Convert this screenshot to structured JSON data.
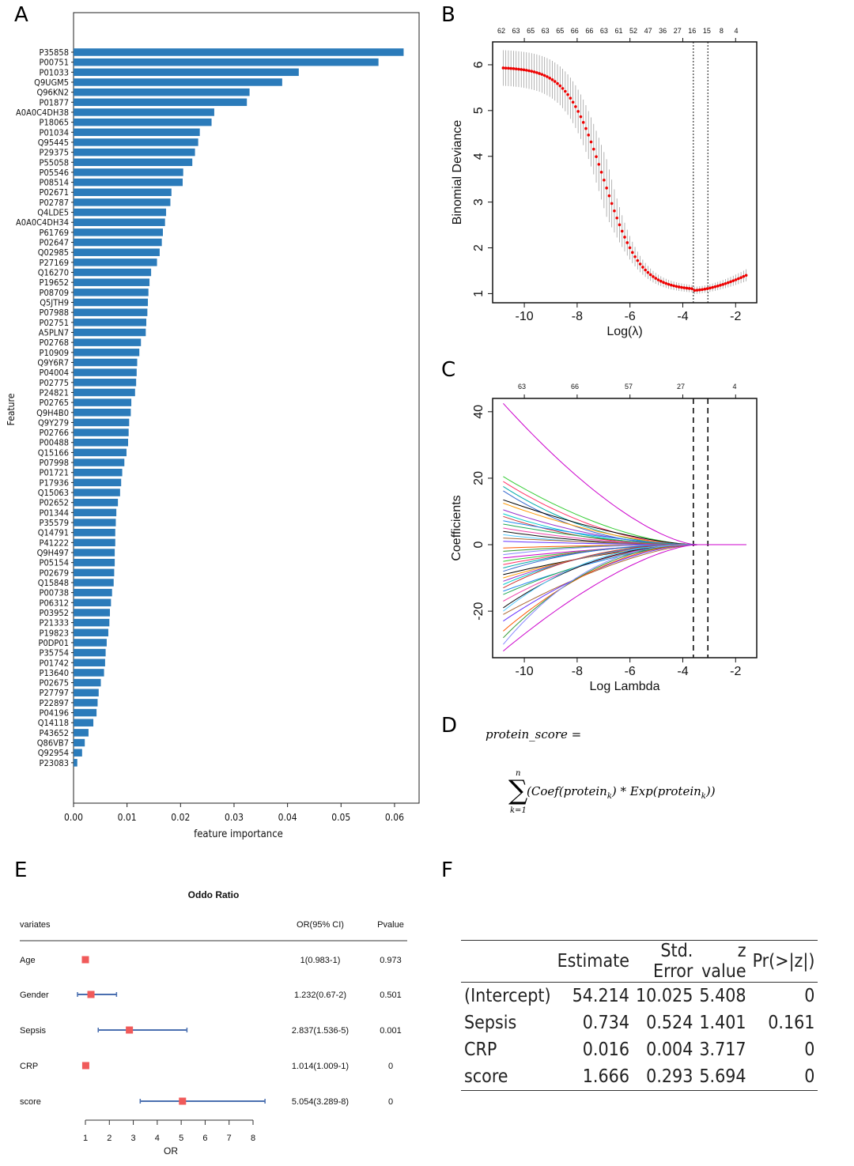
{
  "panels": {
    "a": "A",
    "b": "B",
    "c": "C",
    "d": "D",
    "e": "E",
    "f": "F"
  },
  "chart_data": [
    {
      "type": "bar",
      "orientation": "horizontal",
      "xlabel": "feature importance",
      "ylabel": "Feature",
      "xlim": [
        0,
        0.064
      ],
      "xticks": [
        "0.00",
        "0.01",
        "0.02",
        "0.03",
        "0.04",
        "0.05",
        "0.06"
      ],
      "color": "#2b7bba",
      "categories": [
        "P35858",
        "P00751",
        "P01033",
        "Q9UGM5",
        "Q96KN2",
        "P01877",
        "A0A0C4DH38",
        "P18065",
        "P01034",
        "Q95445",
        "P29375",
        "P55058",
        "P05546",
        "P08514",
        "P02671",
        "P02787",
        "Q4LDE5",
        "A0A0C4DH34",
        "P61769",
        "P02647",
        "Q02985",
        "P27169",
        "Q16270",
        "P19652",
        "P08709",
        "Q5JTH9",
        "P07988",
        "P02751",
        "A5PLN7",
        "P02768",
        "P10909",
        "Q9Y6R7",
        "P04004",
        "P02775",
        "P24821",
        "P02765",
        "Q9H4B0",
        "Q9Y279",
        "P02766",
        "P00488",
        "Q15166",
        "P07998",
        "P01721",
        "P17936",
        "Q15063",
        "P02652",
        "P01344",
        "P35579",
        "Q14791",
        "P41222",
        "Q9H497",
        "P05154",
        "P02679",
        "Q15848",
        "P00738",
        "P06312",
        "P03952",
        "P21333",
        "P19823",
        "P0DP01",
        "P35754",
        "P01742",
        "P13640",
        "P02675",
        "P27797",
        "P22897",
        "P04196",
        "Q14118",
        "P43652",
        "Q86VB7",
        "Q92954",
        "P23083"
      ],
      "values": [
        0.0617,
        0.057,
        0.0421,
        0.039,
        0.0329,
        0.0324,
        0.0263,
        0.0258,
        0.0236,
        0.0233,
        0.0227,
        0.0222,
        0.0205,
        0.0204,
        0.0183,
        0.0181,
        0.0173,
        0.0171,
        0.0167,
        0.0165,
        0.0161,
        0.0156,
        0.0145,
        0.0142,
        0.014,
        0.0139,
        0.0138,
        0.0136,
        0.0135,
        0.0126,
        0.0123,
        0.0119,
        0.0118,
        0.0117,
        0.0115,
        0.0108,
        0.0107,
        0.0104,
        0.0103,
        0.0102,
        0.0099,
        0.0095,
        0.0091,
        0.0089,
        0.0087,
        0.0083,
        0.008,
        0.0079,
        0.0078,
        0.0078,
        0.0077,
        0.0077,
        0.0076,
        0.0075,
        0.0072,
        0.007,
        0.0068,
        0.0067,
        0.0065,
        0.0062,
        0.006,
        0.0059,
        0.0057,
        0.0051,
        0.0047,
        0.0045,
        0.0043,
        0.0037,
        0.0028,
        0.0021,
        0.0016,
        0.0007
      ]
    },
    {
      "type": "line",
      "subtype": "error-bar",
      "xlabel": "Log(λ)",
      "ylabel": "Binomial Deviance",
      "xlim": [
        -11.2,
        -1.2
      ],
      "ylim": [
        0.8,
        6.5
      ],
      "xticks": [
        "-10",
        "-8",
        "-6",
        "-4",
        "-2"
      ],
      "yticks": [
        "1",
        "2",
        "3",
        "4",
        "5",
        "6"
      ],
      "top_axis_labels": [
        "62",
        "63",
        "65",
        "63",
        "65",
        "66",
        "66",
        "63",
        "61",
        "52",
        "47",
        "36",
        "27",
        "16",
        "15",
        "8",
        "4"
      ],
      "vlines": [
        -3.6,
        -3.05
      ],
      "x_range": [
        -10.8,
        -1.6
      ],
      "y_start": 5.95,
      "y_min": 1.07,
      "y_end": 1.4,
      "point_color": "#ee0000"
    },
    {
      "type": "line",
      "subtype": "coefficient-paths",
      "xlabel": "Log Lambda",
      "ylabel": "Coefficients",
      "xlim": [
        -11.2,
        -1.2
      ],
      "ylim": [
        -34,
        44
      ],
      "xticks": [
        "-10",
        "-8",
        "-6",
        "-4",
        "-2"
      ],
      "yticks": [
        "-20",
        "0",
        "20",
        "40"
      ],
      "top_axis_labels": [
        "63",
        "66",
        "57",
        "27",
        "4"
      ],
      "vlines": [
        -3.6,
        -3.05
      ],
      "start_values": [
        42.5,
        20.5,
        19,
        17.5,
        16.2,
        13.5,
        12.5,
        10.5,
        9.3,
        8.5,
        7.2,
        6.2,
        5,
        4,
        3,
        2,
        1,
        -1,
        -2,
        -3,
        -4,
        -5,
        -6,
        -7,
        -8,
        -9,
        -10,
        -11,
        -12,
        -13,
        -14,
        -15,
        -17,
        -19,
        -20,
        -21,
        -23,
        -26,
        -28,
        -30,
        -32
      ]
    },
    {
      "type": "table",
      "subtype": "forest-plot",
      "title": "Oddo Ratio",
      "header": [
        "variates",
        "OR(95% CI)",
        "Pvalue"
      ],
      "xlabel": "OR",
      "xticks": [
        "1",
        "2",
        "3",
        "4",
        "5",
        "6",
        "7",
        "8"
      ],
      "rows": [
        {
          "name": "Age",
          "ci": "1(0.983-1)",
          "p": "0.973",
          "or": 1.0,
          "lo": 0.983,
          "hi": 1.0
        },
        {
          "name": "Gender",
          "ci": "1.232(0.67-2)",
          "p": "0.501",
          "or": 1.232,
          "lo": 0.67,
          "hi": 2.3
        },
        {
          "name": "Sepsis",
          "ci": "2.837(1.536-5)",
          "p": "0.001",
          "or": 2.837,
          "lo": 1.536,
          "hi": 5.24
        },
        {
          "name": "CRP",
          "ci": "1.014(1.009-1)",
          "p": "0",
          "or": 1.014,
          "lo": 1.009,
          "hi": 1.02
        },
        {
          "name": "score",
          "ci": "5.054(3.289-8)",
          "p": "0",
          "or": 5.054,
          "lo": 3.289,
          "hi": 8.5
        }
      ],
      "marker_color": "#f05a5a",
      "line_color": "#4a6fb0"
    }
  ],
  "formula": {
    "lhs": "protein_score =",
    "sum_upper": "n",
    "sum_lower": "k=1",
    "body_1": "(Coef(protein",
    "sub_1": "k",
    "body_2": ") * Exp(protein",
    "sub_2": "k",
    "body_3": "))"
  },
  "coef_table": {
    "columns": [
      "",
      "Estimate",
      "Std. Error",
      "z value",
      "Pr(>|z|)"
    ],
    "rows": [
      [
        "(Intercept)",
        "54.214",
        "10.025",
        "5.408",
        "0"
      ],
      [
        "Sepsis",
        "0.734",
        "0.524",
        "1.401",
        "0.161"
      ],
      [
        "CRP",
        "0.016",
        "0.004",
        "3.717",
        "0"
      ],
      [
        "score",
        "1.666",
        "0.293",
        "5.694",
        "0"
      ]
    ]
  }
}
